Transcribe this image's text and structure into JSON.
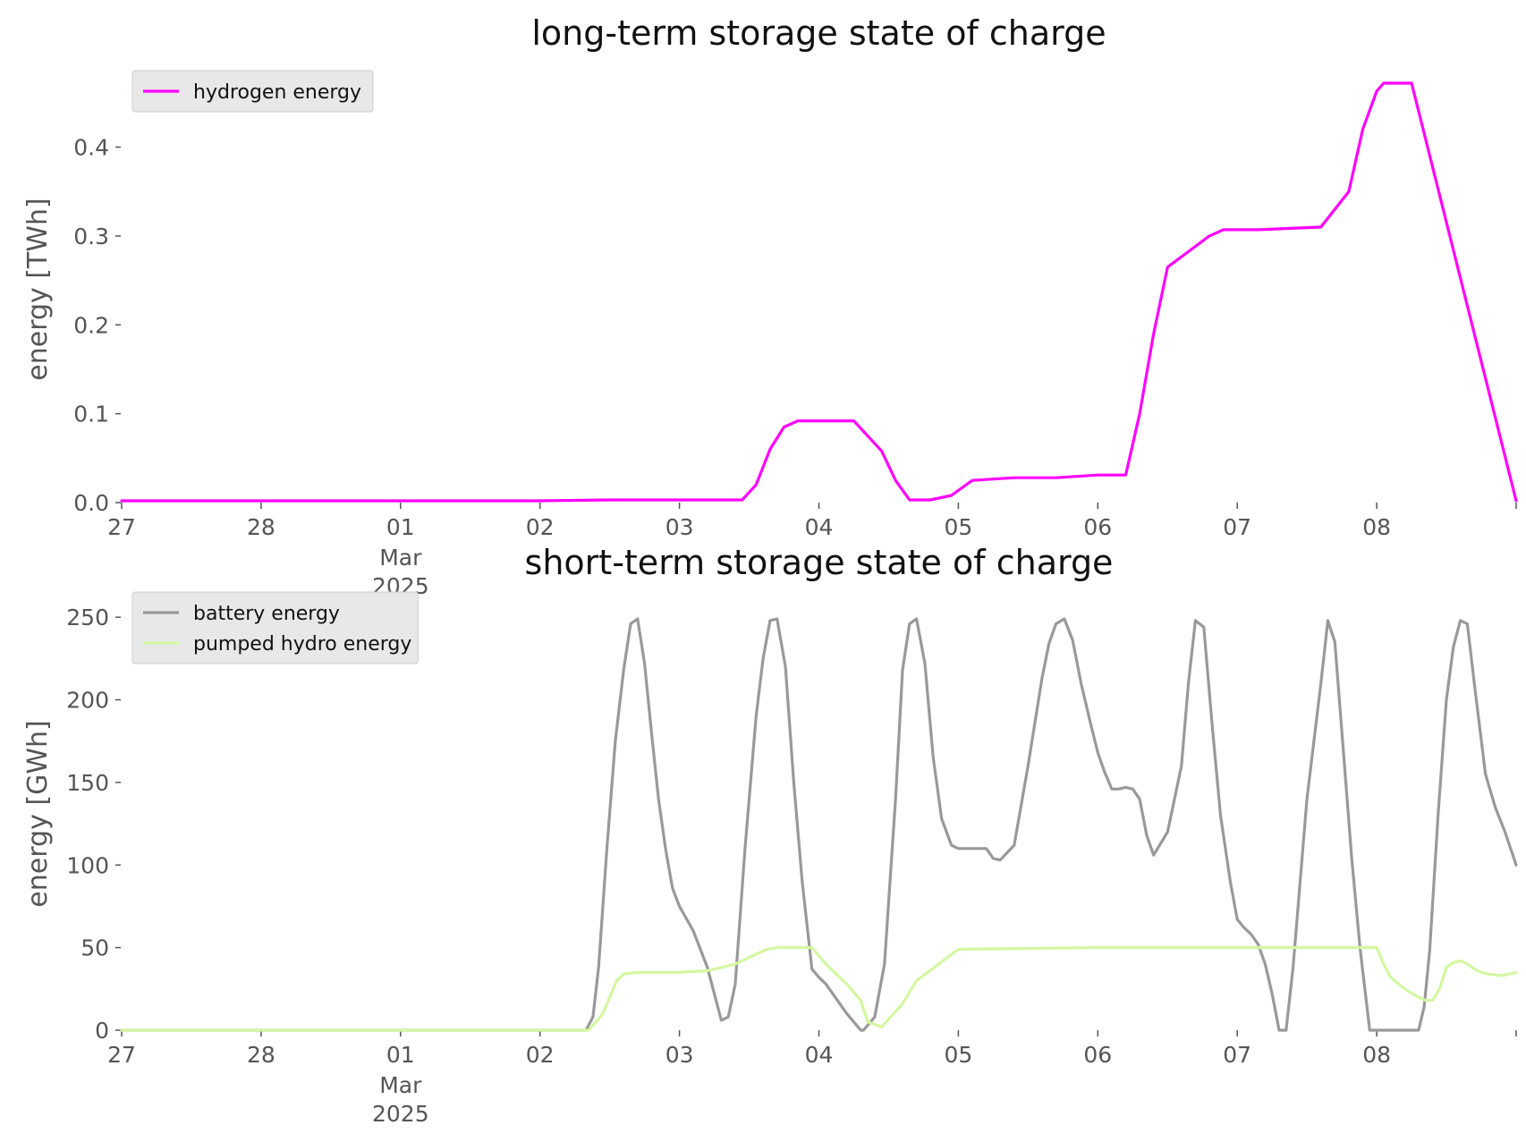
{
  "colors": {
    "hydrogen": "#ff00ff",
    "battery": "#999999",
    "pumped_hydro": "#d4f7a1",
    "axis": "#555555",
    "legend_bg": "#e8e8e8"
  },
  "chart_data": [
    {
      "type": "line",
      "title": "long-term storage state of charge",
      "ylabel": "energy [TWh]",
      "xlabel": "",
      "xlim": [
        0,
        10
      ],
      "ylim": [
        0,
        0.48
      ],
      "yticks": [
        0.0,
        0.1,
        0.2,
        0.3,
        0.4
      ],
      "ytick_labels": [
        "0.0",
        "0.1",
        "0.2",
        "0.3",
        "0.4"
      ],
      "xticks": [
        0,
        1,
        2,
        3,
        4,
        5,
        6,
        7,
        8,
        9
      ],
      "xtick_labels": [
        "27",
        "28",
        "01",
        "02",
        "03",
        "04",
        "05",
        "06",
        "07",
        "08"
      ],
      "xtick_sublabels": {
        "2": [
          "Mar",
          "2025"
        ]
      },
      "legend": "top-left",
      "grid": false,
      "series": [
        {
          "name": "hydrogen energy",
          "color": "#ff00ff",
          "x": [
            0,
            1,
            2,
            3,
            3.5,
            4,
            4.3,
            4.45,
            4.55,
            4.65,
            4.75,
            4.85,
            4.95,
            5.0,
            5.25,
            5.45,
            5.55,
            5.65,
            5.8,
            5.95,
            6.1,
            6.4,
            6.5,
            6.6,
            6.7,
            6.9,
            7.0,
            7.2,
            7.3,
            7.4,
            7.5,
            7.8,
            7.9,
            8.05,
            8.15,
            8.3,
            8.45,
            8.6,
            8.8,
            8.9,
            9.0,
            9.05,
            9.15,
            9.2,
            9.25,
            10
          ],
          "y": [
            0.002,
            0.002,
            0.002,
            0.002,
            0.003,
            0.003,
            0.003,
            0.003,
            0.02,
            0.06,
            0.085,
            0.092,
            0.092,
            0.092,
            0.092,
            0.058,
            0.025,
            0.003,
            0.003,
            0.008,
            0.025,
            0.028,
            0.028,
            0.028,
            0.028,
            0.03,
            0.031,
            0.031,
            0.1,
            0.19,
            0.265,
            0.3,
            0.307,
            0.307,
            0.307,
            0.308,
            0.309,
            0.31,
            0.35,
            0.42,
            0.463,
            0.472,
            0.472,
            0.472,
            0.472,
            0.002
          ]
        }
      ]
    },
    {
      "type": "line",
      "title": "short-term storage state of charge",
      "ylabel": "energy [GWh]",
      "xlabel": "",
      "xlim": [
        0,
        10
      ],
      "ylim": [
        0,
        262
      ],
      "yticks": [
        0,
        50,
        100,
        150,
        200,
        250
      ],
      "ytick_labels": [
        "0",
        "50",
        "100",
        "150",
        "200",
        "250"
      ],
      "xticks": [
        0,
        1,
        2,
        3,
        4,
        5,
        6,
        7,
        8,
        9
      ],
      "xtick_labels": [
        "27",
        "28",
        "01",
        "02",
        "03",
        "04",
        "05",
        "06",
        "07",
        "08"
      ],
      "xtick_sublabels": {
        "2": [
          "Mar",
          "2025"
        ]
      },
      "legend": "top-left",
      "grid": false,
      "series": [
        {
          "name": "battery energy",
          "color": "#999999",
          "x": [
            0,
            3.33,
            3.38,
            3.42,
            3.48,
            3.54,
            3.6,
            3.65,
            3.7,
            3.75,
            3.8,
            3.85,
            3.9,
            3.95,
            4.0,
            4.1,
            4.2,
            4.3,
            4.35,
            4.4,
            4.47,
            4.55,
            4.6,
            4.65,
            4.7,
            4.76,
            4.82,
            4.88,
            4.95,
            5.0,
            5.05,
            5.2,
            5.3,
            5.32,
            5.4,
            5.47,
            5.55,
            5.6,
            5.65,
            5.7,
            5.76,
            5.82,
            5.88,
            5.95,
            6.0,
            6.05,
            6.1,
            6.2,
            6.25,
            6.3,
            6.4,
            6.5,
            6.6,
            6.65,
            6.7,
            6.76,
            6.82,
            6.88,
            6.95,
            7.0,
            7.05,
            7.1,
            7.15,
            7.2,
            7.25,
            7.3,
            7.35,
            7.4,
            7.5,
            7.6,
            7.65,
            7.7,
            7.76,
            7.82,
            7.88,
            7.95,
            8.0,
            8.05,
            8.1,
            8.15,
            8.2,
            8.25,
            8.3,
            8.35,
            8.4,
            8.5,
            8.6,
            8.65,
            8.7,
            8.76,
            8.82,
            8.88,
            8.95,
            9.0,
            9.05,
            9.1,
            9.15,
            9.2,
            9.25,
            9.3,
            9.34,
            9.38,
            9.44,
            9.5,
            9.55,
            9.6,
            9.65,
            9.7,
            9.78,
            9.85,
            9.92,
            10.0
          ],
          "y": [
            0,
            0,
            8,
            38,
            110,
            175,
            218,
            246,
            249,
            222,
            180,
            140,
            110,
            86,
            75,
            60,
            38,
            6,
            8,
            28,
            110,
            190,
            225,
            248,
            249,
            220,
            150,
            90,
            37,
            32,
            28,
            10,
            0,
            0,
            8,
            40,
            140,
            218,
            246,
            249,
            222,
            165,
            128,
            112,
            110,
            110,
            110,
            110,
            104,
            103,
            112,
            160,
            213,
            234,
            246,
            249,
            236,
            210,
            185,
            168,
            156,
            146,
            146,
            147,
            146,
            140,
            118,
            106,
            120,
            160,
            210,
            248,
            244,
            185,
            130,
            90,
            67,
            62,
            58,
            52,
            40,
            22,
            0,
            0,
            38,
            140,
            210,
            248,
            235,
            170,
            105,
            50,
            0,
            0,
            0,
            0,
            0,
            0,
            0,
            0,
            14,
            48,
            130,
            200,
            232,
            248,
            246,
            210,
            155,
            135,
            120,
            100
          ]
        },
        {
          "name": "pumped hydro energy",
          "color": "#d4f7a1",
          "x": [
            0,
            3.35,
            3.45,
            3.55,
            3.6,
            3.7,
            4.0,
            4.2,
            4.4,
            4.55,
            4.63,
            4.7,
            4.8,
            4.95,
            5.05,
            5.2,
            5.3,
            5.35,
            5.45,
            5.6,
            5.7,
            6.0,
            7.0,
            8.0,
            9.0,
            9.05,
            9.1,
            9.2,
            9.3,
            9.35,
            9.4,
            9.45,
            9.5,
            9.55,
            9.6,
            9.65,
            9.7,
            9.75,
            9.8,
            9.9,
            10.0
          ],
          "y": [
            0,
            0,
            10,
            30,
            34,
            35,
            35,
            36,
            40,
            46,
            49,
            50,
            50,
            50,
            40,
            28,
            18,
            5,
            2,
            16,
            30,
            49,
            50,
            50,
            50,
            40,
            32,
            25,
            20,
            18,
            18,
            25,
            38,
            41,
            42,
            40,
            37,
            35,
            34,
            33,
            35
          ]
        }
      ]
    }
  ]
}
